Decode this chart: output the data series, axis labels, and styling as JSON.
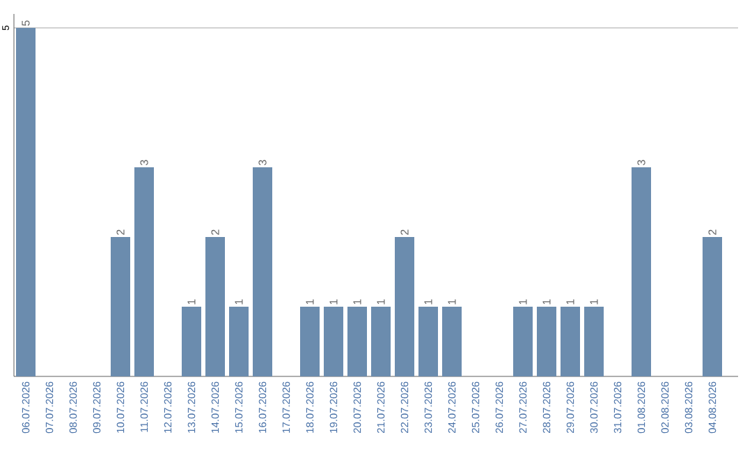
{
  "chart_data": {
    "type": "bar",
    "categories": [
      "06.07.2026",
      "07.07.2026",
      "08.07.2026",
      "09.07.2026",
      "10.07.2026",
      "11.07.2026",
      "12.07.2026",
      "13.07.2026",
      "14.07.2026",
      "15.07.2026",
      "16.07.2026",
      "17.07.2026",
      "18.07.2026",
      "19.07.2026",
      "20.07.2026",
      "21.07.2026",
      "22.07.2026",
      "23.07.2026",
      "24.07.2026",
      "25.07.2026",
      "26.07.2026",
      "27.07.2026",
      "28.07.2026",
      "29.07.2026",
      "30.07.2026",
      "31.07.2026",
      "01.08.2026",
      "02.08.2026",
      "03.08.2026",
      "04.08.2026"
    ],
    "values": [
      5,
      0,
      0,
      0,
      2,
      3,
      0,
      1,
      2,
      1,
      3,
      0,
      1,
      1,
      1,
      1,
      2,
      1,
      1,
      0,
      0,
      1,
      1,
      1,
      1,
      0,
      3,
      0,
      0,
      2
    ],
    "value_labels": [
      "5",
      null,
      null,
      null,
      "2",
      "3",
      null,
      "1",
      "2",
      "1",
      "3",
      null,
      "1",
      "1",
      "1",
      "1",
      "2",
      "1",
      "1",
      null,
      null,
      "1",
      "1",
      "1",
      "1",
      null,
      "3",
      null,
      null,
      "2"
    ],
    "color": "#6b8cae",
    "ylim": [
      0,
      5.2
    ],
    "yticks": [
      5
    ],
    "grid": "y"
  }
}
